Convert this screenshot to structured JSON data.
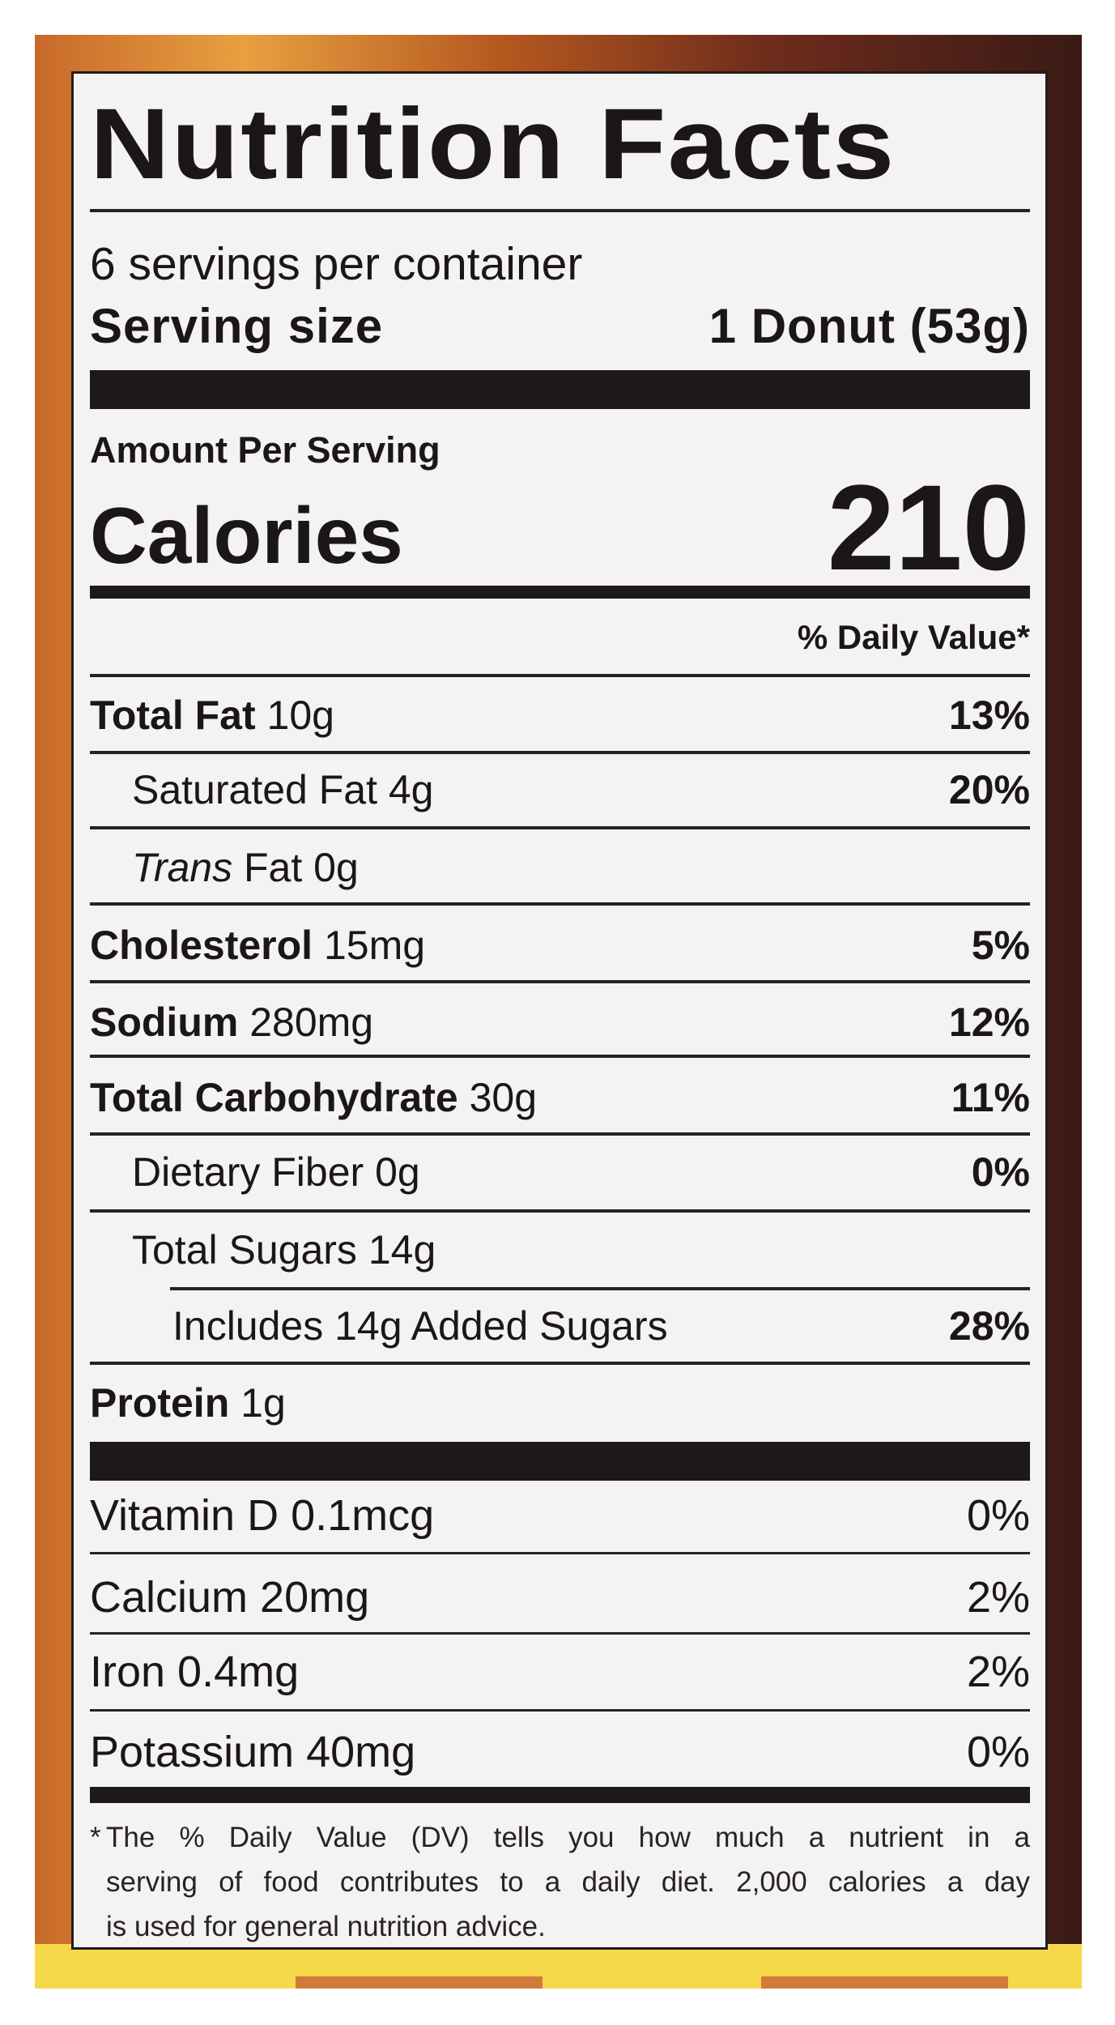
{
  "title": "Nutrition Facts",
  "servings_per_container": "6 servings per container",
  "serving_size": {
    "label": "Serving size",
    "value": "1 Donut (53g)"
  },
  "amount_per_serving": "Amount Per Serving",
  "calories": {
    "label": "Calories",
    "value": "210"
  },
  "daily_value_header": "% Daily Value*",
  "nutrients": [
    {
      "label": "Total Fat",
      "amount": "10g",
      "dv": "13%",
      "style": "bold",
      "indent": 0
    },
    {
      "label": "Saturated Fat",
      "amount": "4g",
      "dv": "20%",
      "style": "normal",
      "indent": 1
    },
    {
      "label": "Trans",
      "amount": "Fat 0g",
      "dv": "",
      "style": "italic",
      "indent": 1
    },
    {
      "label": "Cholesterol",
      "amount": "15mg",
      "dv": "5%",
      "style": "bold",
      "indent": 0
    },
    {
      "label": "Sodium",
      "amount": "280mg",
      "dv": "12%",
      "style": "bold",
      "indent": 0
    },
    {
      "label": "Total Carbohydrate",
      "amount": "30g",
      "dv": "11%",
      "style": "bold",
      "indent": 0
    },
    {
      "label": "Dietary Fiber",
      "amount": "0g",
      "dv": "0%",
      "style": "normal",
      "indent": 1
    },
    {
      "label": "Total Sugars",
      "amount": "14g",
      "dv": "",
      "style": "normal",
      "indent": 1
    },
    {
      "label": "Includes 14g Added Sugars",
      "amount": "",
      "dv": "28%",
      "style": "normal",
      "indent": 2
    },
    {
      "label": "Protein",
      "amount": "1g",
      "dv": "",
      "style": "bold",
      "indent": 0
    }
  ],
  "vitamins": [
    {
      "label": "Vitamin D 0.1mcg",
      "dv": "0%"
    },
    {
      "label": "Calcium 20mg",
      "dv": "2%"
    },
    {
      "label": "Iron 0.4mg",
      "dv": "2%"
    },
    {
      "label": "Potassium 40mg",
      "dv": "0%"
    }
  ],
  "footnote": {
    "asterisk": "*",
    "lines": [
      "The % Daily Value (DV) tells you how much a nutrient in a",
      "serving of food contributes to a daily diet. 2,000 calories a day",
      "is used for general nutrition advice."
    ]
  }
}
